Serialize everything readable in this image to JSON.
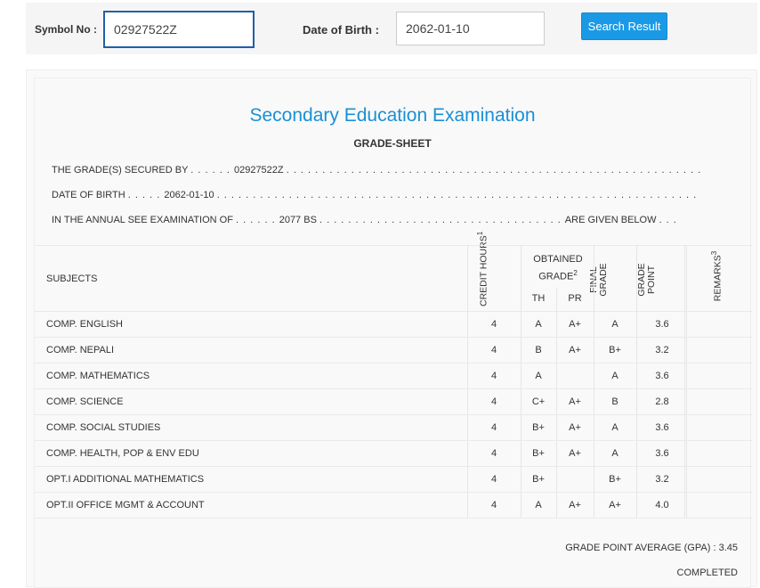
{
  "search": {
    "symbol_label": "Symbol No :",
    "symbol_value": "02927522Z",
    "dob_label": "Date of Birth :",
    "dob_value": "2062-01-10",
    "button_label": "Search Result"
  },
  "sheet": {
    "exam_title": "Secondary Education Examination",
    "title": "GRADE-SHEET",
    "intro": {
      "line1_prefix": "THE GRADE(S) SECURED BY",
      "line1_value": "02927522Z",
      "line2_prefix": "DATE OF BIRTH",
      "line2_value": "2062-01-10",
      "line3_prefix": "IN THE ANNUAL SEE EXAMINATION OF",
      "line3_value": "2077 BS",
      "line3_suffix": "ARE GIVEN BELOW"
    },
    "headers": {
      "subjects": "SUBJECTS",
      "credit_hours": "CREDIT HOURS",
      "credit_sup": "1",
      "obtained_grade": "OBTAINED GRADE",
      "obtained_sup": "2",
      "th": "TH",
      "pr": "PR",
      "final_grade": "FINAL GRADE",
      "grade_point": "GRADE POINT",
      "remarks": "REMARKS",
      "remarks_sup": "3"
    },
    "rows": [
      {
        "subject": "COMP. ENGLISH",
        "credit": "4",
        "th": "A",
        "pr": "A+",
        "final": "A",
        "gp": "3.6",
        "remarks": ""
      },
      {
        "subject": "COMP. NEPALI",
        "credit": "4",
        "th": "B",
        "pr": "A+",
        "final": "B+",
        "gp": "3.2",
        "remarks": ""
      },
      {
        "subject": "COMP. MATHEMATICS",
        "credit": "4",
        "th": "A",
        "pr": "",
        "final": "A",
        "gp": "3.6",
        "remarks": ""
      },
      {
        "subject": "COMP. SCIENCE",
        "credit": "4",
        "th": "C+",
        "pr": "A+",
        "final": "B",
        "gp": "2.8",
        "remarks": ""
      },
      {
        "subject": "COMP. SOCIAL STUDIES",
        "credit": "4",
        "th": "B+",
        "pr": "A+",
        "final": "A",
        "gp": "3.6",
        "remarks": ""
      },
      {
        "subject": "COMP. HEALTH, POP & ENV EDU",
        "credit": "4",
        "th": "B+",
        "pr": "A+",
        "final": "A",
        "gp": "3.6",
        "remarks": ""
      },
      {
        "subject": "OPT.I ADDITIONAL MATHEMATICS",
        "credit": "4",
        "th": "B+",
        "pr": "",
        "final": "B+",
        "gp": "3.2",
        "remarks": ""
      },
      {
        "subject": "OPT.II OFFICE MGMT & ACCOUNT",
        "credit": "4",
        "th": "A",
        "pr": "A+",
        "final": "A+",
        "gp": "4.0",
        "remarks": ""
      }
    ],
    "gpa_label": "GRADE POINT AVERAGE (GPA) :",
    "gpa_value": "3.45",
    "status": "COMPLETED"
  },
  "colors": {
    "accent": "#1a9ae6",
    "title_blue": "#1a8fd6",
    "focus_border": "#1f5fa8"
  }
}
